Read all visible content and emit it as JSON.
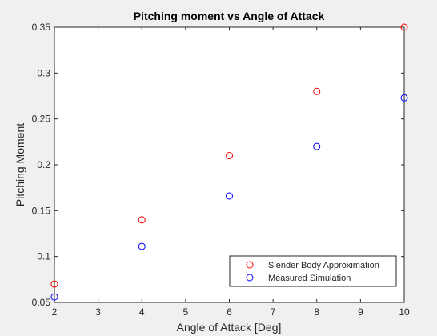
{
  "chart_data": {
    "type": "scatter",
    "title": "Pitching moment vs Angle of Attack",
    "xlabel": "Angle of Attack [Deg]",
    "ylabel": "Pitching Moment",
    "xlim": [
      2,
      10
    ],
    "ylim": [
      0.05,
      0.35
    ],
    "xticks": [
      "2",
      "3",
      "4",
      "5",
      "6",
      "7",
      "8",
      "9",
      "10"
    ],
    "yticks": [
      "0.05",
      "0.1",
      "0.15",
      "0.2",
      "0.25",
      "0.3",
      "0.35"
    ],
    "grid": false,
    "legend_position": "bottom-right",
    "x": [
      2,
      4,
      6,
      8,
      10
    ],
    "series": [
      {
        "name": "Slender Body Approximation",
        "color": "#ff0000",
        "marker": "circle-open",
        "values": [
          0.07,
          0.14,
          0.21,
          0.28,
          0.35
        ]
      },
      {
        "name": "Measured Simulation",
        "color": "#0000ff",
        "marker": "circle-open",
        "values": [
          0.056,
          0.111,
          0.166,
          0.22,
          0.273
        ]
      }
    ]
  }
}
